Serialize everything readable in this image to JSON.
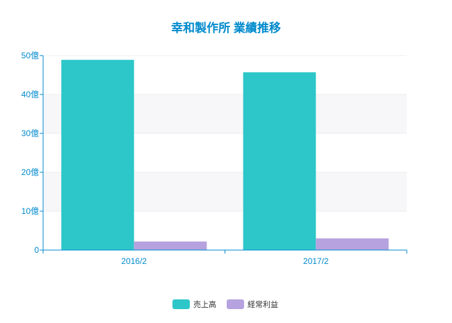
{
  "chart_data": {
    "type": "bar",
    "title": "幸和製作所 業績推移",
    "categories": [
      "2016/2",
      "2017/2"
    ],
    "series": [
      {
        "name": "売上高",
        "color": "#2ec7c9",
        "values": [
          48.9,
          45.7
        ]
      },
      {
        "name": "経常利益",
        "color": "#b6a2de",
        "values": [
          2.2,
          3.0
        ]
      }
    ],
    "ylim": [
      0,
      50
    ],
    "yticks": [
      0,
      10,
      20,
      30,
      40,
      50
    ],
    "ytick_labels": [
      "0",
      "10億",
      "20億",
      "30億",
      "40億",
      "50億"
    ],
    "xlabel": "",
    "ylabel": "",
    "grid": true,
    "legend_position": "bottom-center",
    "colors": {
      "title": "#008acd",
      "axis": "#008acd",
      "grid": "#eeeeee",
      "band": "#f7f7f9",
      "label": "#333333"
    }
  }
}
